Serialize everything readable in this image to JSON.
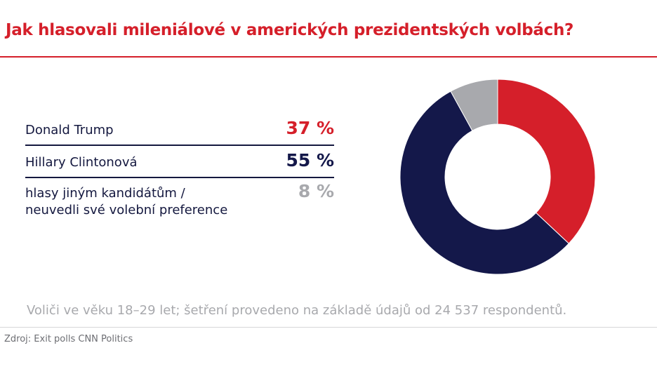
{
  "title": "Jak hlasovali mileniálové v amerických prezidentských volbách?",
  "chart_data": {
    "type": "pie",
    "categories": [
      "Donald Trump",
      "Hillary Clintonová",
      "hlasy jiným kandidátům / neuvedli své volební preference"
    ],
    "values": [
      37,
      55,
      8
    ],
    "value_labels": [
      "37 %",
      "55 %",
      "8 %"
    ],
    "colors": [
      "#d51f2a",
      "#14184a",
      "#a8a9ad"
    ],
    "donut": true
  },
  "legend": {
    "rows": [
      {
        "label": "Donald Trump",
        "value": "37 %"
      },
      {
        "label": "Hillary Clintonová",
        "value": "55 %"
      },
      {
        "label_line1": "hlasy jiným kandidátům /",
        "label_line2": "neuvedli své volební preference",
        "value": "8 %"
      }
    ]
  },
  "note": "Voliči ve věku 18–29 let; šetření provedeno na základě údajů od 24 537 respondentů.",
  "source": "Zdroj: Exit polls CNN Politics"
}
